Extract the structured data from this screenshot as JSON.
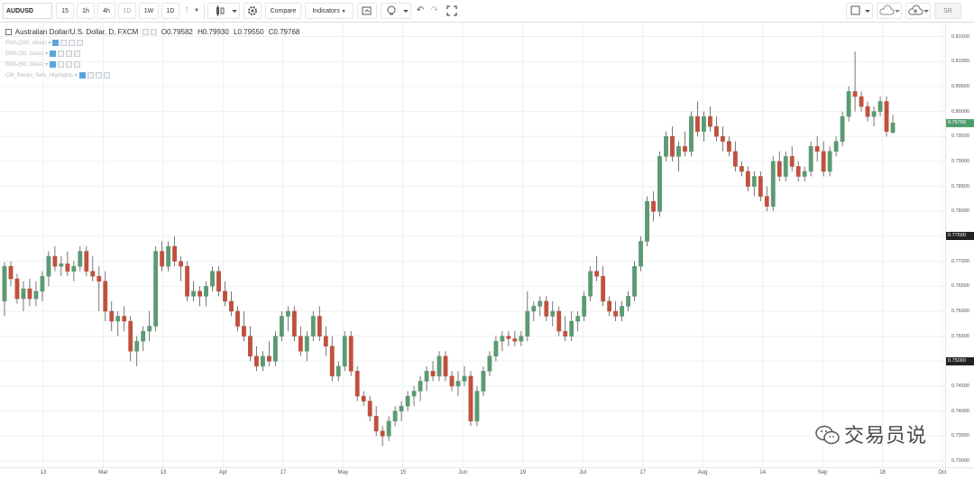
{
  "toolbar": {
    "symbol": "AUDUSD",
    "intervals": [
      "15",
      "1h",
      "4h",
      "1D",
      "1W",
      "1D"
    ],
    "selected_interval": "1D",
    "compare_label": "Compare",
    "indicators_label": "Indicators",
    "sr_label": "SR"
  },
  "legend": {
    "title": "Australian Dollar/U.S. Dollar, D, FXCM",
    "open": "O0.79582",
    "high": "H0.79930",
    "low": "L0.79550",
    "close": "C0.79768",
    "indicators": [
      "EMA (200, close)",
      "EMA (20, close)",
      "EMA (50, close)",
      "CM_Renko_Sets_Highlights"
    ]
  },
  "price_axis": {
    "labels": [
      "0.81500",
      "0.81000",
      "0.80500",
      "0.80000",
      "0.79500",
      "0.79000",
      "0.78500",
      "0.78000",
      "0.77500",
      "0.77000",
      "0.76500",
      "0.76000",
      "0.75500",
      "0.75000",
      "0.74500",
      "0.74000",
      "0.73500",
      "0.73000"
    ],
    "current_price": "0.79768",
    "current_color": "#4f9e6e",
    "level_tags": [
      "0.77500",
      "0.75000"
    ]
  },
  "time_axis": {
    "labels": [
      "13",
      "Mar",
      "13",
      "Apr",
      "17",
      "May",
      "15",
      "Jun",
      "19",
      "Jul",
      "17",
      "Aug",
      "14",
      "Sep",
      "18",
      "Oct"
    ]
  },
  "watermark": {
    "text": "交易员说"
  },
  "chart_data": {
    "type": "candlestick",
    "title": "Australian Dollar/U.S. Dollar, D, FXCM",
    "ylim": [
      0.73,
      0.816
    ],
    "up_color": "#5b9a72",
    "down_color": "#c0503f",
    "grid": true,
    "candles": [
      [
        0.762,
        0.7698,
        0.759,
        0.769
      ],
      [
        0.769,
        0.77,
        0.765,
        0.7665
      ],
      [
        0.7665,
        0.7675,
        0.7615,
        0.7625
      ],
      [
        0.7625,
        0.766,
        0.76,
        0.7645
      ],
      [
        0.7645,
        0.7665,
        0.761,
        0.7625
      ],
      [
        0.7625,
        0.766,
        0.761,
        0.764
      ],
      [
        0.764,
        0.768,
        0.762,
        0.767
      ],
      [
        0.767,
        0.772,
        0.765,
        0.771
      ],
      [
        0.771,
        0.773,
        0.768,
        0.769
      ],
      [
        0.769,
        0.771,
        0.767,
        0.7695
      ],
      [
        0.7695,
        0.772,
        0.767,
        0.768
      ],
      [
        0.768,
        0.77,
        0.766,
        0.769
      ],
      [
        0.769,
        0.773,
        0.768,
        0.772
      ],
      [
        0.772,
        0.773,
        0.767,
        0.768
      ],
      [
        0.768,
        0.771,
        0.766,
        0.767
      ],
      [
        0.767,
        0.769,
        0.76,
        0.766
      ],
      [
        0.766,
        0.768,
        0.758,
        0.76
      ],
      [
        0.76,
        0.762,
        0.756,
        0.758
      ],
      [
        0.758,
        0.76,
        0.755,
        0.759
      ],
      [
        0.759,
        0.761,
        0.756,
        0.758
      ],
      [
        0.758,
        0.759,
        0.75,
        0.752
      ],
      [
        0.752,
        0.755,
        0.749,
        0.754
      ],
      [
        0.754,
        0.757,
        0.752,
        0.756
      ],
      [
        0.756,
        0.76,
        0.754,
        0.757
      ],
      [
        0.757,
        0.773,
        0.756,
        0.772
      ],
      [
        0.772,
        0.774,
        0.768,
        0.769
      ],
      [
        0.769,
        0.774,
        0.768,
        0.773
      ],
      [
        0.773,
        0.775,
        0.769,
        0.77
      ],
      [
        0.77,
        0.771,
        0.766,
        0.769
      ],
      [
        0.769,
        0.77,
        0.762,
        0.763
      ],
      [
        0.763,
        0.766,
        0.762,
        0.764
      ],
      [
        0.764,
        0.765,
        0.761,
        0.763
      ],
      [
        0.763,
        0.766,
        0.761,
        0.765
      ],
      [
        0.765,
        0.769,
        0.764,
        0.768
      ],
      [
        0.768,
        0.769,
        0.763,
        0.764
      ],
      [
        0.764,
        0.766,
        0.761,
        0.762
      ],
      [
        0.762,
        0.764,
        0.759,
        0.76
      ],
      [
        0.76,
        0.761,
        0.756,
        0.757
      ],
      [
        0.757,
        0.76,
        0.754,
        0.755
      ],
      [
        0.755,
        0.757,
        0.75,
        0.751
      ],
      [
        0.751,
        0.753,
        0.748,
        0.749
      ],
      [
        0.749,
        0.752,
        0.748,
        0.751
      ],
      [
        0.751,
        0.754,
        0.749,
        0.75
      ],
      [
        0.75,
        0.756,
        0.749,
        0.755
      ],
      [
        0.755,
        0.76,
        0.754,
        0.759
      ],
      [
        0.759,
        0.761,
        0.756,
        0.76
      ],
      [
        0.76,
        0.761,
        0.754,
        0.755
      ],
      [
        0.755,
        0.757,
        0.751,
        0.752
      ],
      [
        0.752,
        0.756,
        0.75,
        0.755
      ],
      [
        0.755,
        0.76,
        0.754,
        0.759
      ],
      [
        0.759,
        0.761,
        0.754,
        0.755
      ],
      [
        0.755,
        0.757,
        0.751,
        0.753
      ],
      [
        0.753,
        0.755,
        0.746,
        0.747
      ],
      [
        0.747,
        0.75,
        0.746,
        0.749
      ],
      [
        0.749,
        0.756,
        0.748,
        0.755
      ],
      [
        0.755,
        0.756,
        0.747,
        0.748
      ],
      [
        0.748,
        0.749,
        0.742,
        0.743
      ],
      [
        0.743,
        0.744,
        0.741,
        0.742
      ],
      [
        0.742,
        0.743,
        0.738,
        0.739
      ],
      [
        0.739,
        0.741,
        0.735,
        0.736
      ],
      [
        0.736,
        0.737,
        0.733,
        0.735
      ],
      [
        0.735,
        0.739,
        0.734,
        0.738
      ],
      [
        0.738,
        0.741,
        0.737,
        0.74
      ],
      [
        0.74,
        0.742,
        0.738,
        0.741
      ],
      [
        0.741,
        0.744,
        0.74,
        0.743
      ],
      [
        0.743,
        0.745,
        0.741,
        0.744
      ],
      [
        0.744,
        0.747,
        0.742,
        0.746
      ],
      [
        0.746,
        0.749,
        0.744,
        0.748
      ],
      [
        0.748,
        0.75,
        0.746,
        0.747
      ],
      [
        0.747,
        0.752,
        0.746,
        0.751
      ],
      [
        0.751,
        0.752,
        0.746,
        0.747
      ],
      [
        0.747,
        0.748,
        0.744,
        0.745
      ],
      [
        0.745,
        0.748,
        0.743,
        0.746
      ],
      [
        0.746,
        0.749,
        0.745,
        0.747
      ],
      [
        0.747,
        0.748,
        0.737,
        0.738
      ],
      [
        0.738,
        0.745,
        0.737,
        0.744
      ],
      [
        0.744,
        0.749,
        0.743,
        0.748
      ],
      [
        0.748,
        0.752,
        0.747,
        0.751
      ],
      [
        0.751,
        0.755,
        0.75,
        0.754
      ],
      [
        0.754,
        0.756,
        0.752,
        0.755
      ],
      [
        0.755,
        0.756,
        0.753,
        0.7545
      ],
      [
        0.7545,
        0.756,
        0.753,
        0.754
      ],
      [
        0.754,
        0.756,
        0.753,
        0.755
      ],
      [
        0.755,
        0.764,
        0.754,
        0.76
      ],
      [
        0.76,
        0.762,
        0.758,
        0.761
      ],
      [
        0.761,
        0.763,
        0.759,
        0.762
      ],
      [
        0.762,
        0.763,
        0.758,
        0.759
      ],
      [
        0.759,
        0.762,
        0.757,
        0.76
      ],
      [
        0.76,
        0.761,
        0.755,
        0.756
      ],
      [
        0.756,
        0.759,
        0.754,
        0.755
      ],
      [
        0.755,
        0.76,
        0.754,
        0.758
      ],
      [
        0.758,
        0.76,
        0.756,
        0.759
      ],
      [
        0.759,
        0.764,
        0.758,
        0.763
      ],
      [
        0.763,
        0.769,
        0.762,
        0.768
      ],
      [
        0.768,
        0.771,
        0.766,
        0.767
      ],
      [
        0.767,
        0.769,
        0.761,
        0.762
      ],
      [
        0.762,
        0.763,
        0.759,
        0.76
      ],
      [
        0.76,
        0.762,
        0.758,
        0.759
      ],
      [
        0.759,
        0.762,
        0.758,
        0.761
      ],
      [
        0.761,
        0.764,
        0.76,
        0.763
      ],
      [
        0.763,
        0.77,
        0.762,
        0.769
      ],
      [
        0.769,
        0.775,
        0.768,
        0.774
      ],
      [
        0.774,
        0.783,
        0.773,
        0.782
      ],
      [
        0.782,
        0.784,
        0.778,
        0.78
      ],
      [
        0.78,
        0.792,
        0.779,
        0.791
      ],
      [
        0.791,
        0.796,
        0.79,
        0.795
      ],
      [
        0.795,
        0.797,
        0.79,
        0.791
      ],
      [
        0.791,
        0.794,
        0.788,
        0.793
      ],
      [
        0.793,
        0.796,
        0.791,
        0.792
      ],
      [
        0.792,
        0.8,
        0.791,
        0.799
      ],
      [
        0.799,
        0.802,
        0.795,
        0.796
      ],
      [
        0.796,
        0.8,
        0.794,
        0.799
      ],
      [
        0.799,
        0.801,
        0.796,
        0.797
      ],
      [
        0.797,
        0.799,
        0.794,
        0.795
      ],
      [
        0.795,
        0.797,
        0.792,
        0.794
      ],
      [
        0.794,
        0.795,
        0.791,
        0.792
      ],
      [
        0.792,
        0.794,
        0.788,
        0.789
      ],
      [
        0.789,
        0.79,
        0.787,
        0.788
      ],
      [
        0.788,
        0.789,
        0.784,
        0.785
      ],
      [
        0.785,
        0.788,
        0.783,
        0.787
      ],
      [
        0.787,
        0.788,
        0.782,
        0.783
      ],
      [
        0.783,
        0.785,
        0.78,
        0.781
      ],
      [
        0.781,
        0.791,
        0.78,
        0.79
      ],
      [
        0.79,
        0.792,
        0.786,
        0.787
      ],
      [
        0.787,
        0.792,
        0.786,
        0.791
      ],
      [
        0.791,
        0.793,
        0.788,
        0.789
      ],
      [
        0.789,
        0.79,
        0.786,
        0.787
      ],
      [
        0.787,
        0.789,
        0.786,
        0.788
      ],
      [
        0.788,
        0.794,
        0.787,
        0.793
      ],
      [
        0.793,
        0.795,
        0.79,
        0.792
      ],
      [
        0.792,
        0.794,
        0.787,
        0.788
      ],
      [
        0.788,
        0.793,
        0.787,
        0.792
      ],
      [
        0.792,
        0.795,
        0.791,
        0.794
      ],
      [
        0.794,
        0.8,
        0.793,
        0.799
      ],
      [
        0.799,
        0.805,
        0.798,
        0.804
      ],
      [
        0.804,
        0.812,
        0.8,
        0.803
      ],
      [
        0.803,
        0.804,
        0.8,
        0.801
      ],
      [
        0.801,
        0.802,
        0.798,
        0.799
      ],
      [
        0.799,
        0.801,
        0.797,
        0.8
      ],
      [
        0.8,
        0.803,
        0.799,
        0.802
      ],
      [
        0.802,
        0.803,
        0.795,
        0.796
      ],
      [
        0.7958,
        0.7993,
        0.7955,
        0.7977
      ]
    ]
  }
}
